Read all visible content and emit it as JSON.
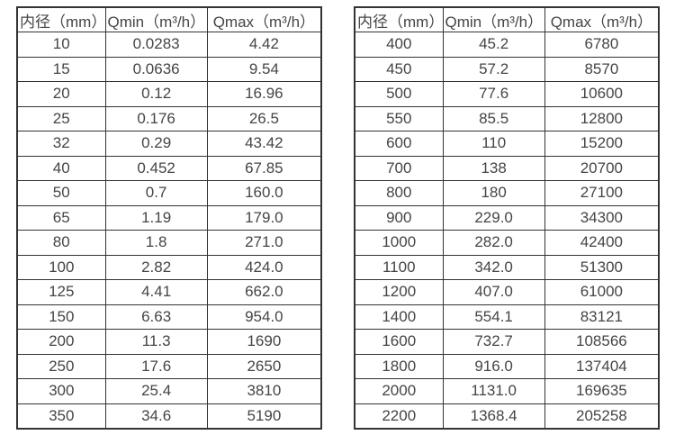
{
  "page": {
    "background_color": "#ffffff",
    "text_color": "#454545",
    "border_color": "#333333"
  },
  "tables": [
    {
      "headers": [
        "内径（mm）",
        "Qmin（m³/h）",
        "Qmax（m³/h）"
      ],
      "rows": [
        [
          "10",
          "0.0283",
          "4.42"
        ],
        [
          "15",
          "0.0636",
          "9.54"
        ],
        [
          "20",
          "0.12",
          "16.96"
        ],
        [
          "25",
          "0.176",
          "26.5"
        ],
        [
          "32",
          "0.29",
          "43.42"
        ],
        [
          "40",
          "0.452",
          "67.85"
        ],
        [
          "50",
          "0.7",
          "160.0"
        ],
        [
          "65",
          "1.19",
          "179.0"
        ],
        [
          "80",
          "1.8",
          "271.0"
        ],
        [
          "100",
          "2.82",
          "424.0"
        ],
        [
          "125",
          "4.41",
          "662.0"
        ],
        [
          "150",
          "6.63",
          "954.0"
        ],
        [
          "200",
          "11.3",
          "1690"
        ],
        [
          "250",
          "17.6",
          "2650"
        ],
        [
          "300",
          "25.4",
          "3810"
        ],
        [
          "350",
          "34.6",
          "5190"
        ]
      ]
    },
    {
      "headers": [
        "内径（mm）",
        "Qmin（m³/h）",
        "Qmax（m³/h）"
      ],
      "rows": [
        [
          "400",
          "45.2",
          "6780"
        ],
        [
          "450",
          "57.2",
          "8570"
        ],
        [
          "500",
          "77.6",
          "10600"
        ],
        [
          "550",
          "85.5",
          "12800"
        ],
        [
          "600",
          "110",
          "15200"
        ],
        [
          "700",
          "138",
          "20700"
        ],
        [
          "800",
          "180",
          "27100"
        ],
        [
          "900",
          "229.0",
          "34300"
        ],
        [
          "1000",
          "282.0",
          "42400"
        ],
        [
          "1100",
          "342.0",
          "51300"
        ],
        [
          "1200",
          "407.0",
          "61000"
        ],
        [
          "1400",
          "554.1",
          "83121"
        ],
        [
          "1600",
          "732.7",
          "108566"
        ],
        [
          "1800",
          "916.0",
          "137404"
        ],
        [
          "2000",
          "1131.0",
          "169635"
        ],
        [
          "2200",
          "1368.4",
          "205258"
        ]
      ]
    }
  ]
}
